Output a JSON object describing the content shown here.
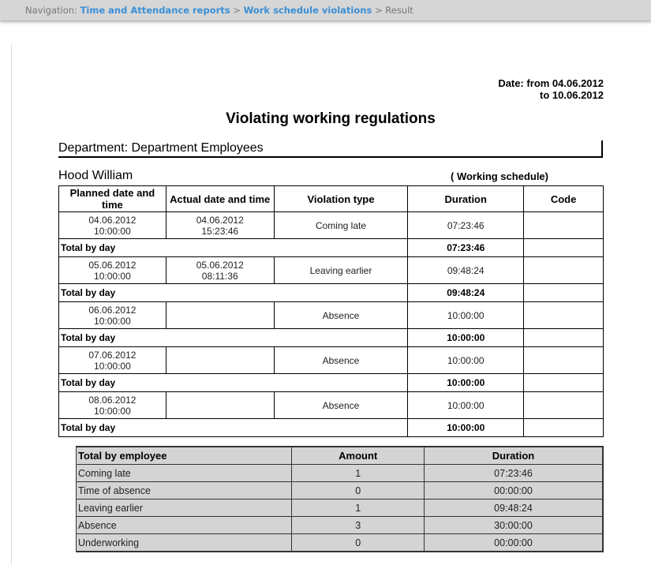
{
  "nav": {
    "prefix": "Navigation:",
    "links": [
      "Time and Attendance reports",
      "Work schedule violations"
    ],
    "current": "Result",
    "sep": ">"
  },
  "report": {
    "date_from": "Date: from 04.06.2012",
    "date_to": "to 10.06.2012",
    "title": "Violating working regulations",
    "department": "Department: Department Employees",
    "employee": "Hood William",
    "schedule": "( Working schedule)",
    "headers": [
      "Planned date and time",
      "Actual date and time",
      "Violation type",
      "Duration",
      "Code"
    ],
    "total_label": "Total by day",
    "rows": [
      {
        "planned_date": "04.06.2012",
        "planned_time": "10:00:00",
        "actual_date": "04.06.2012",
        "actual_time": "15:23:46",
        "type": "Coming late",
        "duration": "07:23:46",
        "code": "",
        "total": "07:23:46"
      },
      {
        "planned_date": "05.06.2012",
        "planned_time": "10:00:00",
        "actual_date": "05.06.2012",
        "actual_time": "08:11:36",
        "type": "Leaving earlier",
        "duration": "09:48:24",
        "code": "",
        "total": "09:48:24"
      },
      {
        "planned_date": "06.06.2012",
        "planned_time": "10:00:00",
        "actual_date": "",
        "actual_time": "",
        "type": "Absence",
        "duration": "10:00:00",
        "code": "",
        "total": "10:00:00"
      },
      {
        "planned_date": "07.06.2012",
        "planned_time": "10:00:00",
        "actual_date": "",
        "actual_time": "",
        "type": "Absence",
        "duration": "10:00:00",
        "code": "",
        "total": "10:00:00"
      },
      {
        "planned_date": "08.06.2012",
        "planned_time": "10:00:00",
        "actual_date": "",
        "actual_time": "",
        "type": "Absence",
        "duration": "10:00:00",
        "code": "",
        "total": "10:00:00"
      }
    ],
    "summary": {
      "headers": [
        "Total by employee",
        "Amount",
        "Duration"
      ],
      "rows": [
        {
          "type": "Coming late",
          "amount": "1",
          "duration": "07:23:46"
        },
        {
          "type": "Time of absence",
          "amount": "0",
          "duration": "00:00:00"
        },
        {
          "type": "Leaving earlier",
          "amount": "1",
          "duration": "09:48:24"
        },
        {
          "type": "Absence",
          "amount": "3",
          "duration": "30:00:00"
        },
        {
          "type": "Underworking",
          "amount": "0",
          "duration": "00:00:00"
        }
      ]
    }
  }
}
